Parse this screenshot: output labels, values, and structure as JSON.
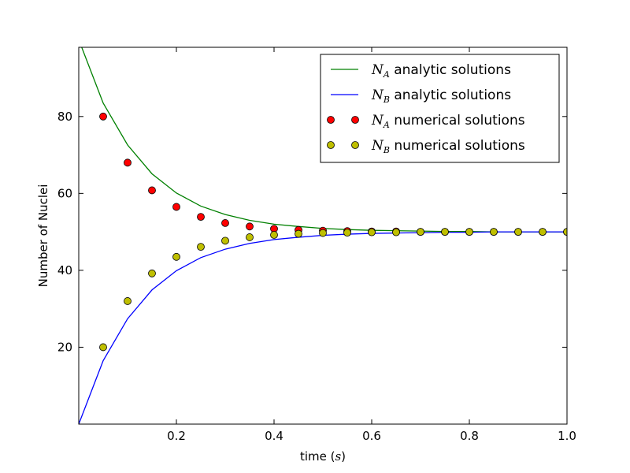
{
  "chart_data": {
    "type": "line",
    "title": "",
    "xlabel_prefix": "time (",
    "xlabel_var": "s",
    "xlabel_suffix": ")",
    "ylabel": "Number of Nuclei",
    "xlim": [
      0.0,
      1.0
    ],
    "ylim": [
      0.0,
      98.0
    ],
    "grid": false,
    "legend_position": "top-right",
    "x_ticks": [
      {
        "value": 0.2,
        "label": "0.2"
      },
      {
        "value": 0.4,
        "label": "0.4"
      },
      {
        "value": 0.6,
        "label": "0.6"
      },
      {
        "value": 0.8,
        "label": "0.8"
      },
      {
        "value": 1.0,
        "label": "1.0"
      }
    ],
    "y_ticks": [
      {
        "value": 20,
        "label": "20"
      },
      {
        "value": 40,
        "label": "40"
      },
      {
        "value": 60,
        "label": "60"
      },
      {
        "value": 80,
        "label": "80"
      }
    ],
    "x": [
      0.0,
      0.05,
      0.1,
      0.15,
      0.2,
      0.25,
      0.3,
      0.35,
      0.4,
      0.45,
      0.5,
      0.55,
      0.6,
      0.65,
      0.7,
      0.75,
      0.8,
      0.85,
      0.9,
      0.95,
      1.0
    ],
    "scatter_x": [
      0.05,
      0.1,
      0.15,
      0.2,
      0.25,
      0.3,
      0.35,
      0.4,
      0.45,
      0.5,
      0.55,
      0.6,
      0.65,
      0.7,
      0.75,
      0.8,
      0.85,
      0.9,
      0.95,
      1.0
    ],
    "series": [
      {
        "sub": "A",
        "suffix": " analytic solutions",
        "kind": "line",
        "color": "#008000",
        "values": [
          100.0,
          83.5,
          72.6,
          65.1,
          60.1,
          56.7,
          54.5,
          53.0,
          52.0,
          51.4,
          50.9,
          50.6,
          50.4,
          50.3,
          50.2,
          50.1,
          50.1,
          50.0,
          50.0,
          50.0,
          50.0
        ]
      },
      {
        "sub": "B",
        "suffix": " analytic solutions",
        "kind": "line",
        "color": "#0000ff",
        "values": [
          0.0,
          16.5,
          27.4,
          34.9,
          39.9,
          43.3,
          45.5,
          47.0,
          48.0,
          48.6,
          49.1,
          49.4,
          49.6,
          49.7,
          49.8,
          49.9,
          49.9,
          50.0,
          50.0,
          50.0,
          50.0
        ]
      },
      {
        "sub": "A",
        "suffix": " numerical solutions",
        "kind": "scatter",
        "color": "#ff0000",
        "values": [
          80.0,
          68.0,
          60.8,
          56.5,
          53.9,
          52.3,
          51.4,
          50.8,
          50.5,
          50.3,
          50.2,
          50.1,
          50.1,
          50.0,
          50.0,
          50.0,
          50.0,
          50.0,
          50.0,
          50.0
        ]
      },
      {
        "sub": "B",
        "suffix": " numerical solutions",
        "kind": "scatter",
        "color": "#bfbf00",
        "values": [
          20.0,
          32.0,
          39.2,
          43.5,
          46.1,
          47.7,
          48.6,
          49.2,
          49.5,
          49.7,
          49.8,
          49.9,
          49.9,
          50.0,
          50.0,
          50.0,
          50.0,
          50.0,
          50.0,
          50.0
        ]
      }
    ]
  }
}
